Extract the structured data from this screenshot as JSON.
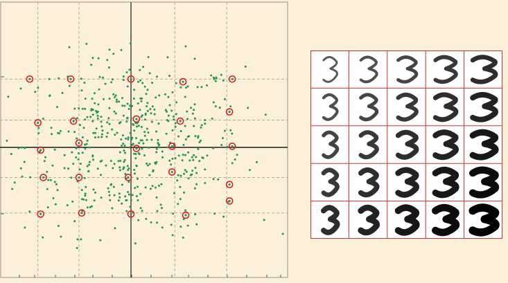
{
  "colors": {
    "background": "#fbf0da",
    "points": "#1f9a50",
    "highlight_ring": "#d42020",
    "axis": "#1a1a1a",
    "grid": "#b8ab96",
    "digit_grid": "#d03030",
    "digit_ink": "#111111"
  },
  "chart_data": [
    {
      "type": "scatter",
      "title": "",
      "xlabel": "",
      "ylabel": "",
      "xlim": [
        -2.2,
        2.7
      ],
      "ylim": [
        -2.25,
        2.55
      ],
      "grid": true,
      "axes_through_origin": true,
      "grid_x": [
        -1.7,
        -0.95,
        0.8,
        1.75
      ],
      "grid_y": [
        1.25,
        0.5,
        -0.55,
        -1.2
      ],
      "n_background_points": 520,
      "background_point_color": "#1f9a50",
      "highlighted_points": [
        {
          "x": -1.85,
          "y": 1.25
        },
        {
          "x": -1.1,
          "y": 1.25
        },
        {
          "x": 0.0,
          "y": 1.25
        },
        {
          "x": 0.95,
          "y": 1.2
        },
        {
          "x": 1.85,
          "y": 1.25
        },
        {
          "x": -1.7,
          "y": 0.45
        },
        {
          "x": -1.05,
          "y": 0.48
        },
        {
          "x": 0.1,
          "y": 0.52
        },
        {
          "x": 0.9,
          "y": 0.48
        },
        {
          "x": 1.8,
          "y": 0.65
        },
        {
          "x": -1.65,
          "y": -0.05
        },
        {
          "x": -0.95,
          "y": 0.08
        },
        {
          "x": 0.1,
          "y": -0.02
        },
        {
          "x": 0.75,
          "y": 0.02
        },
        {
          "x": 1.85,
          "y": 0.02
        },
        {
          "x": -1.6,
          "y": -0.55
        },
        {
          "x": -0.95,
          "y": -0.55
        },
        {
          "x": -0.05,
          "y": -0.55
        },
        {
          "x": 0.75,
          "y": -0.45
        },
        {
          "x": 1.8,
          "y": -0.68
        },
        {
          "x": -1.65,
          "y": -1.22
        },
        {
          "x": -0.9,
          "y": -1.2
        },
        {
          "x": 0.0,
          "y": -1.22
        },
        {
          "x": 1.0,
          "y": -1.24
        },
        {
          "x": 1.8,
          "y": -0.98
        }
      ]
    },
    {
      "type": "image_grid",
      "title": "",
      "rows": 5,
      "cols": 5,
      "cells": [
        [
          "3",
          "3",
          "3",
          "3",
          "3"
        ],
        [
          "3",
          "3",
          "3",
          "3",
          "3"
        ],
        [
          "3",
          "3",
          "3",
          "3",
          "3"
        ],
        [
          "3",
          "3",
          "3",
          "3",
          "3"
        ],
        [
          "3",
          "3",
          "3",
          "3",
          "3"
        ]
      ]
    }
  ]
}
